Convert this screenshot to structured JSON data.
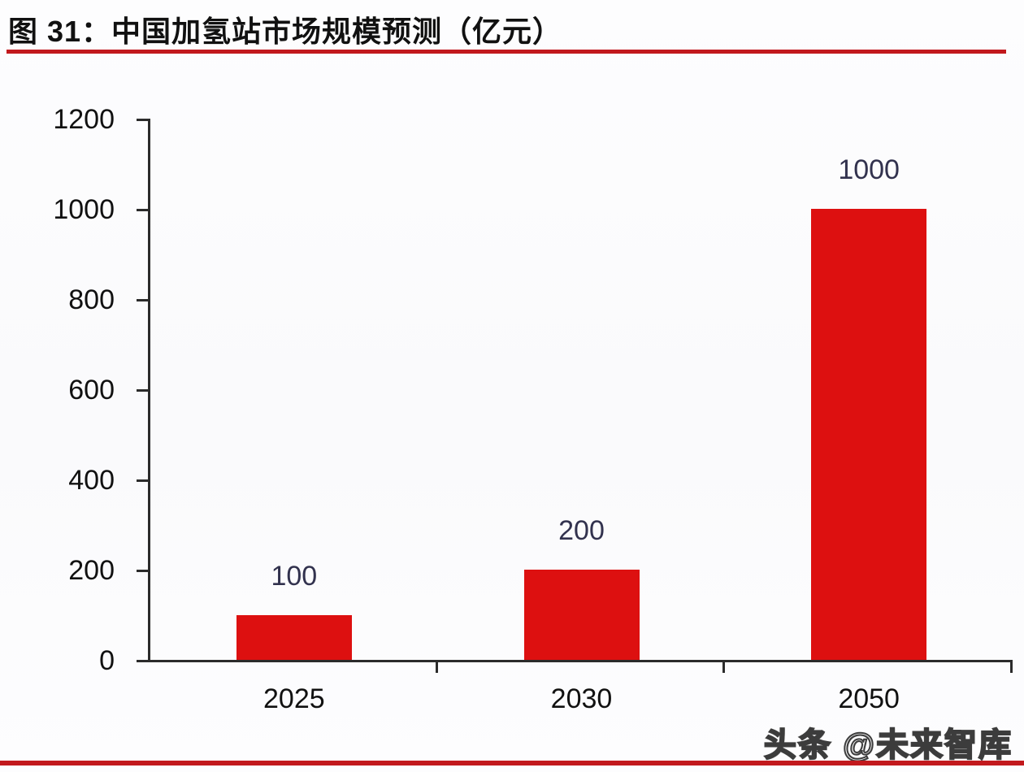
{
  "page": {
    "title": "图 31：中国加氢站市场规模预测（亿元）",
    "watermark": "头条 @未来智库"
  },
  "colors": {
    "bar": "#DD1010",
    "rule_red": "#C2191D",
    "axis": "#2B2B2B",
    "value_label": "#32324E",
    "tick_label": "#111111"
  },
  "chart_data": {
    "type": "bar",
    "title": "图 31：中国加氢站市场规模预测（亿元）",
    "categories": [
      "2025",
      "2030",
      "2050"
    ],
    "values": [
      100,
      200,
      1000
    ],
    "data_labels": [
      "100",
      "200",
      "1000"
    ],
    "xlabel": "",
    "ylabel": "",
    "ylim": [
      0,
      1200
    ],
    "yticks": [
      0,
      200,
      400,
      600,
      800,
      1000,
      1200
    ],
    "grid": false,
    "legend": "none",
    "bar_color": "#DD1010",
    "value_label_color": "#32324E"
  }
}
